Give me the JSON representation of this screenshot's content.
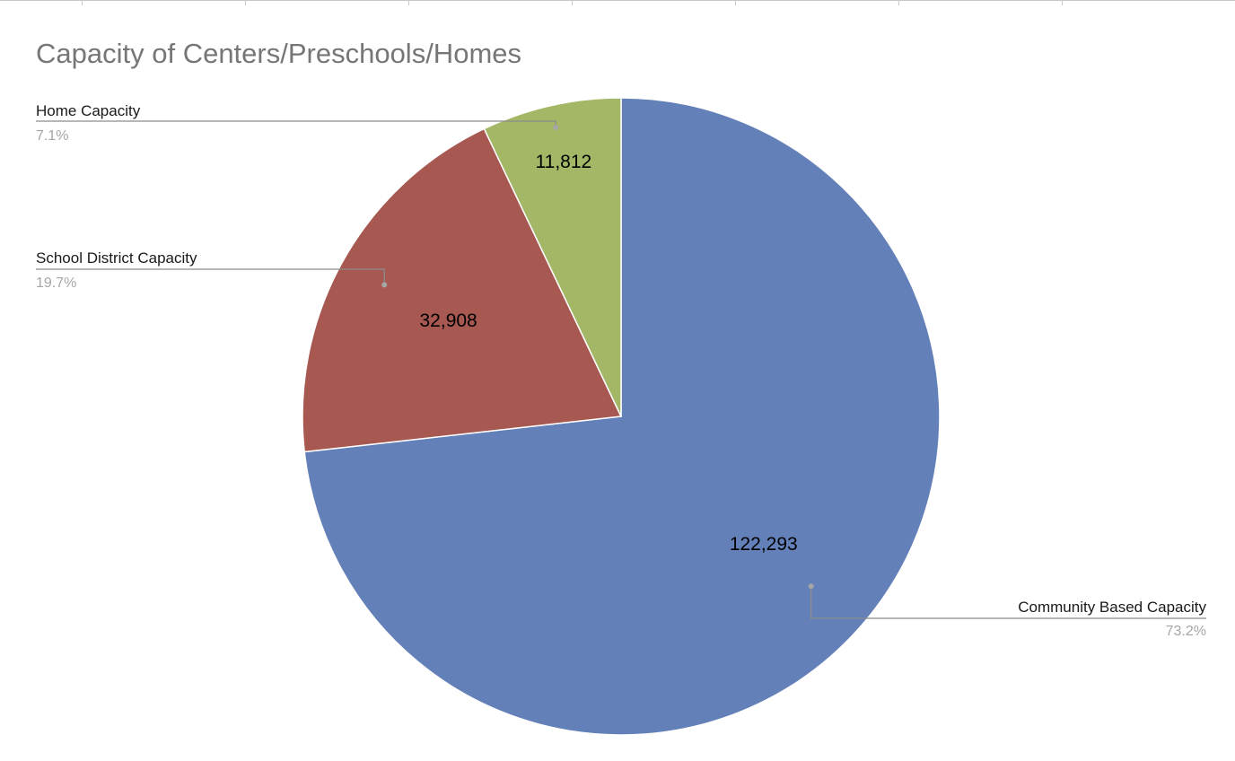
{
  "chart_data": {
    "type": "pie",
    "title": "Capacity of Centers/Preschools/Homes",
    "slices": [
      {
        "label": "Community Based Capacity",
        "value": 122293,
        "value_label": "122,293",
        "percent_label": "73.2%",
        "color": "#6380b9"
      },
      {
        "label": "School District Capacity",
        "value": 32908,
        "value_label": "32,908",
        "percent_label": "19.7%",
        "color": "#a65851"
      },
      {
        "label": "Home Capacity",
        "value": 11812,
        "value_label": "11,812",
        "percent_label": "7.1%",
        "color": "#a3b766"
      }
    ],
    "start_angle": "12 o'clock",
    "direction": "clockwise",
    "label_style": "leader lines with category name and percent outside, value inside"
  },
  "colors": {
    "title": "#767676",
    "leader_line": "#8c8c8c",
    "percent_text": "#a6a6a6",
    "slice_border": "#ffffff"
  }
}
